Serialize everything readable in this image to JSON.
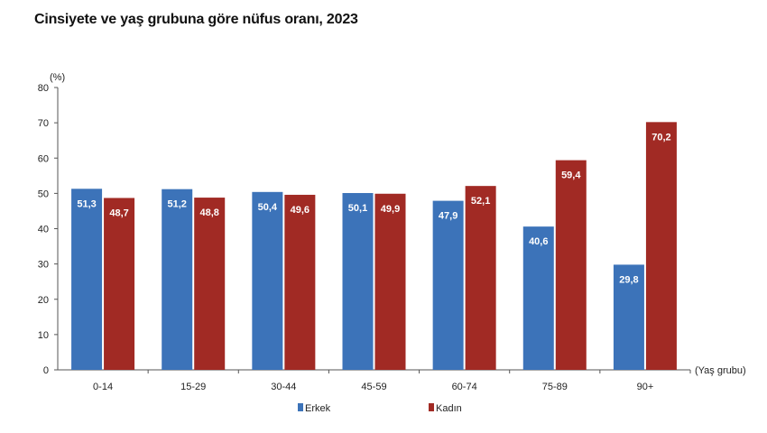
{
  "chart_data": {
    "type": "bar",
    "title": "Cinsiyete ve yaş grubuna göre nüfus oranı, 2023",
    "ylabel": "(%)",
    "xlabel": "(Yaş grubu)",
    "ylim": [
      0,
      80
    ],
    "yticks": [
      "0",
      "10",
      "20",
      "30",
      "40",
      "50",
      "60",
      "70",
      "80"
    ],
    "categories": [
      "0-14",
      "15-29",
      "30-44",
      "45-59",
      "60-74",
      "75-89",
      "90+"
    ],
    "series": [
      {
        "name": "Erkek",
        "color": "#3c73b9",
        "values": [
          51.3,
          51.2,
          50.4,
          50.1,
          47.9,
          40.6,
          29.8
        ],
        "labels": [
          "51,3",
          "51,2",
          "50,4",
          "50,1",
          "47,9",
          "40,6",
          "29,8"
        ]
      },
      {
        "name": "Kadın",
        "color": "#a12a24",
        "values": [
          48.7,
          48.8,
          49.6,
          49.9,
          52.1,
          59.4,
          70.2
        ],
        "labels": [
          "48,7",
          "48,8",
          "49,6",
          "49,9",
          "52,1",
          "59,4",
          "70,2"
        ]
      }
    ],
    "legend_position": "bottom-center",
    "grid": false
  }
}
